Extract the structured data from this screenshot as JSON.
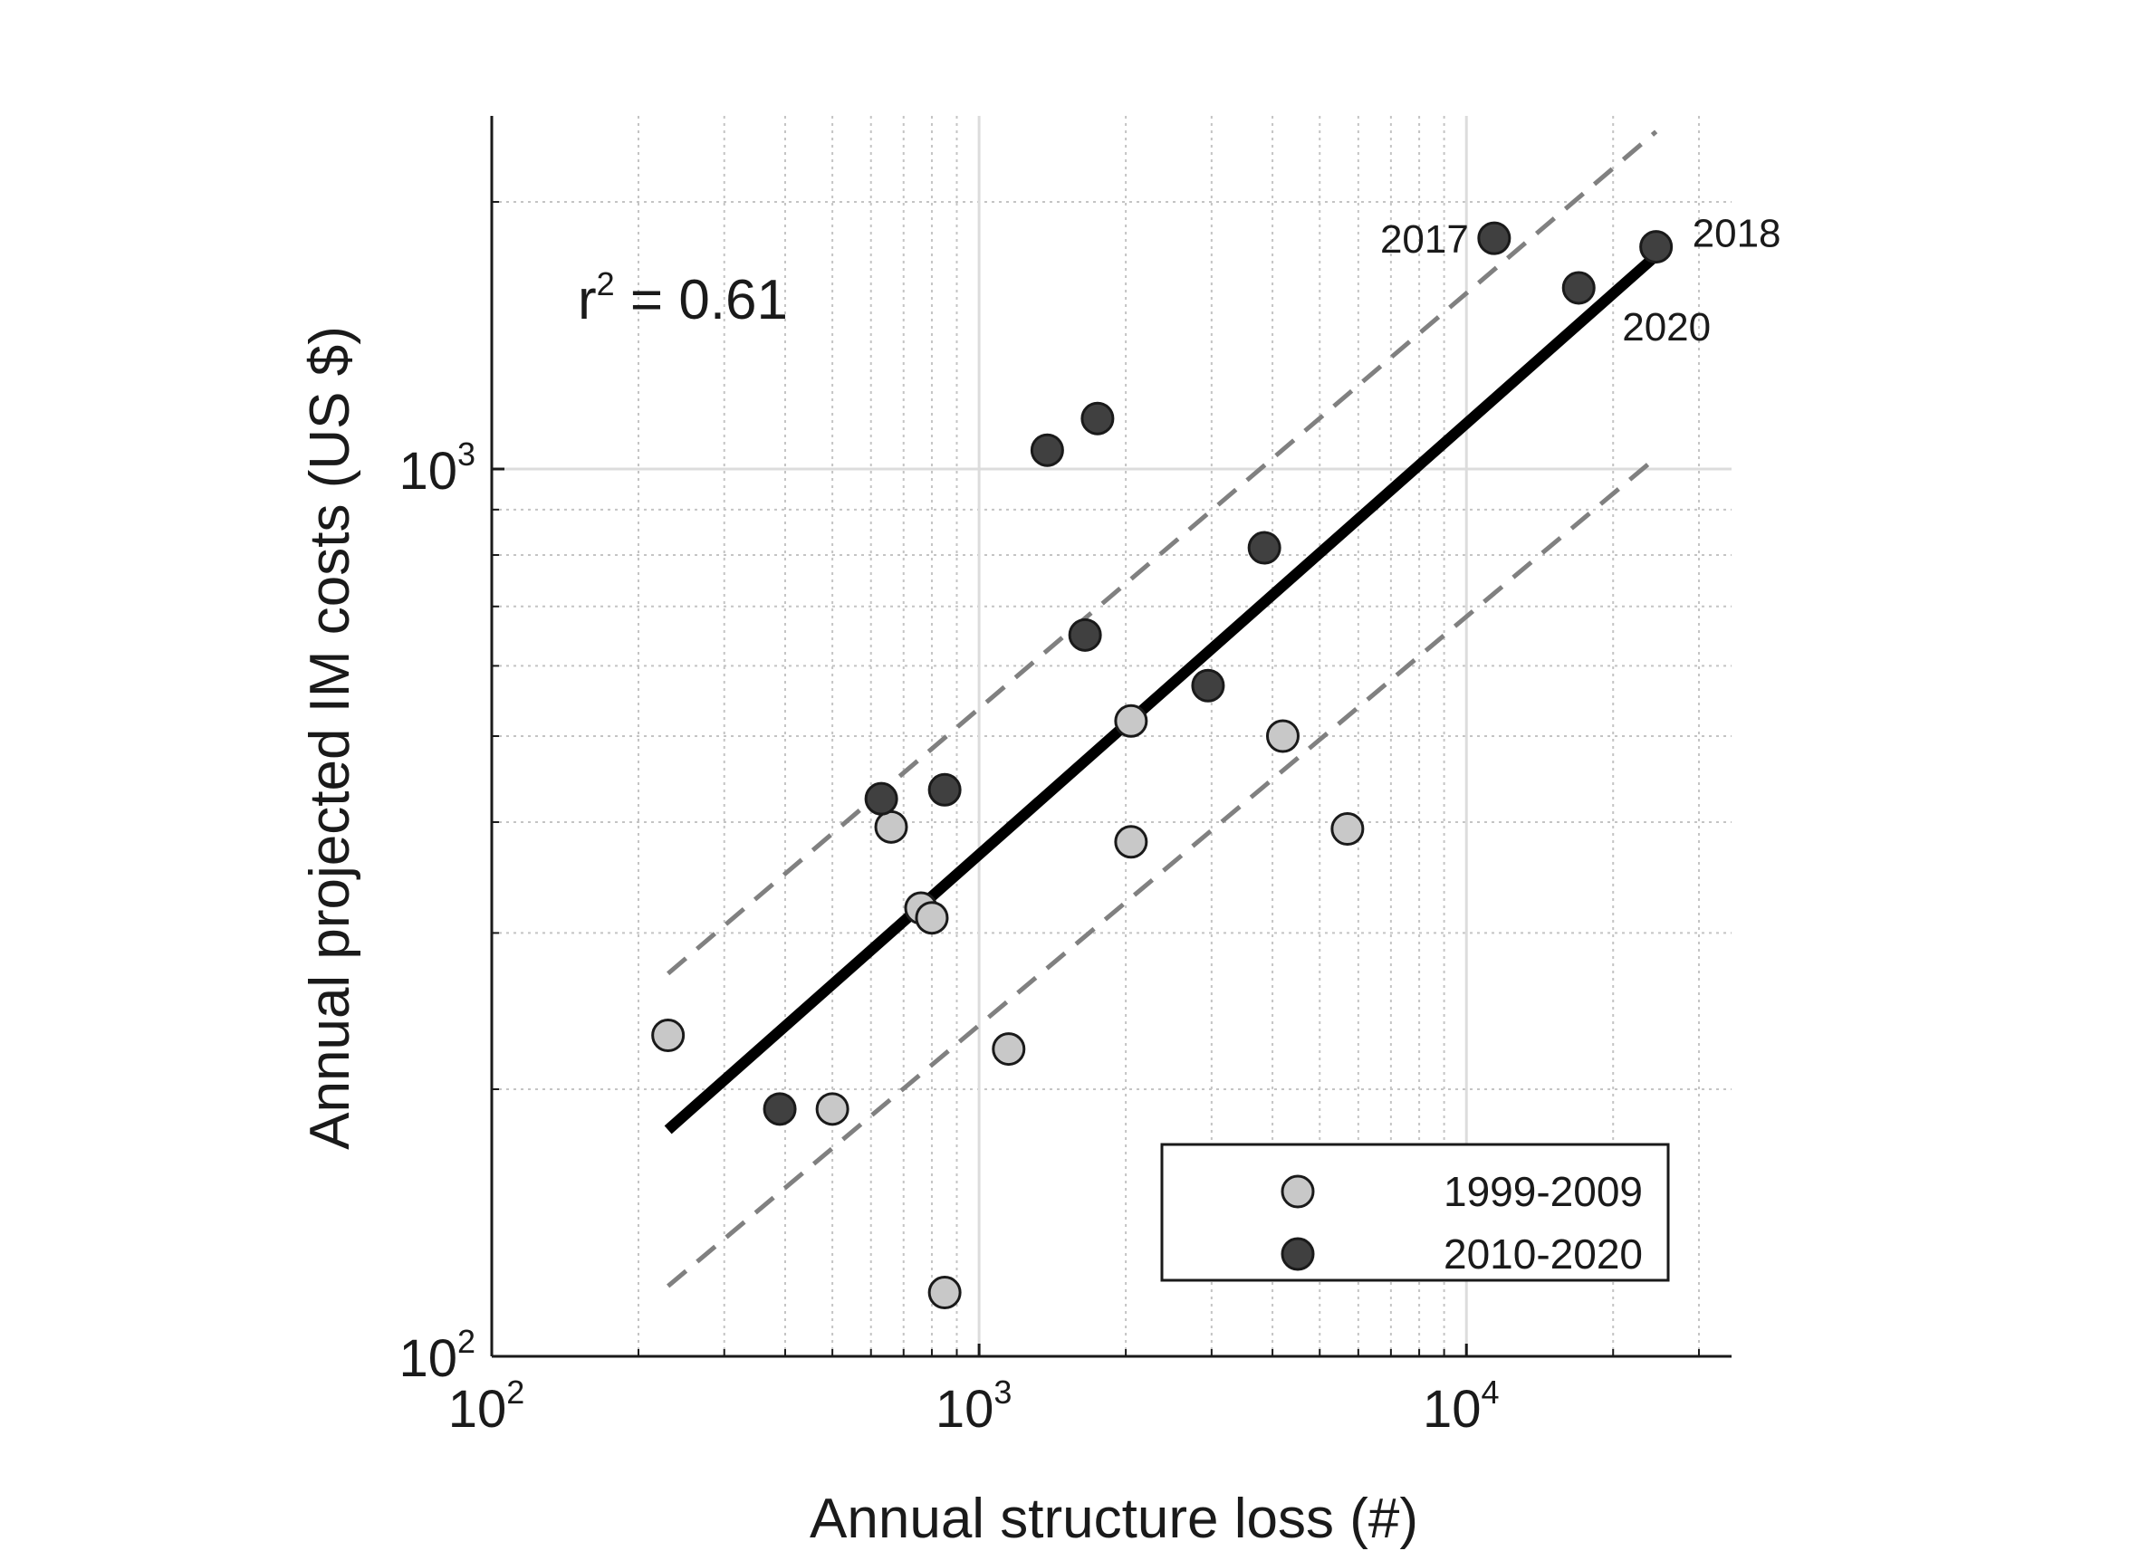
{
  "chart_data": {
    "type": "scatter",
    "xscale": "log",
    "yscale": "log",
    "xlim": [
      100,
      35000
    ],
    "ylim": [
      100,
      2500
    ],
    "grid": true,
    "xlabel": "Annual structure loss (#)",
    "ylabel": "Annual projected IM costs (US $)",
    "xticks": [
      {
        "value": 100,
        "base": "10",
        "exp": "2"
      },
      {
        "value": 1000,
        "base": "10",
        "exp": "3"
      },
      {
        "value": 10000,
        "base": "10",
        "exp": "4"
      }
    ],
    "yticks": [
      {
        "value": 100,
        "base": "10",
        "exp": "2"
      },
      {
        "value": 1000,
        "base": "10",
        "exp": "3"
      }
    ],
    "annotation": {
      "prefix": "r",
      "exp": "2",
      "suffix": " = 0.61"
    },
    "series": [
      {
        "name": "1999-2009",
        "color": "#c8c8c8",
        "points": [
          {
            "x": 230,
            "y": 230
          },
          {
            "x": 500,
            "y": 190
          },
          {
            "x": 660,
            "y": 395
          },
          {
            "x": 760,
            "y": 320
          },
          {
            "x": 800,
            "y": 312
          },
          {
            "x": 850,
            "y": 118
          },
          {
            "x": 1150,
            "y": 222
          },
          {
            "x": 2050,
            "y": 520
          },
          {
            "x": 2050,
            "y": 380
          },
          {
            "x": 4200,
            "y": 500
          },
          {
            "x": 5700,
            "y": 393
          }
        ]
      },
      {
        "name": "2010-2020",
        "color": "#404040",
        "points": [
          {
            "x": 390,
            "y": 190
          },
          {
            "x": 630,
            "y": 425
          },
          {
            "x": 850,
            "y": 435
          },
          {
            "x": 1380,
            "y": 1050
          },
          {
            "x": 1750,
            "y": 1140
          },
          {
            "x": 1650,
            "y": 650
          },
          {
            "x": 2950,
            "y": 570
          },
          {
            "x": 3850,
            "y": 815
          },
          {
            "x": 11400,
            "y": 1820,
            "label": "2017"
          },
          {
            "x": 24500,
            "y": 1780,
            "label": "2018"
          },
          {
            "x": 17000,
            "y": 1600,
            "label": "2020"
          }
        ]
      }
    ],
    "fit_line": {
      "x": [
        230,
        24500
      ],
      "y": [
        180,
        1740
      ],
      "color": "#000000",
      "style": "solid"
    },
    "upper_bound": {
      "x": [
        230,
        24500
      ],
      "y": [
        270,
        2400
      ],
      "color": "#808080",
      "style": "dashed"
    },
    "lower_bound": {
      "x": [
        230,
        24500
      ],
      "y": [
        120,
        1030
      ],
      "color": "#808080",
      "style": "dashed"
    },
    "legend_position": "bottom-right",
    "legend": [
      "1999-2009",
      "2010-2020"
    ]
  }
}
